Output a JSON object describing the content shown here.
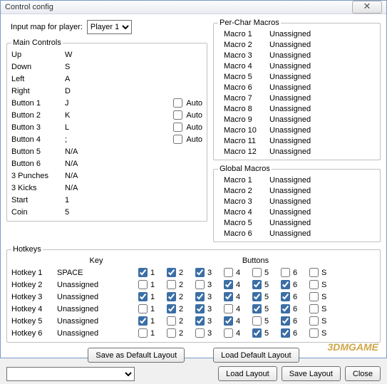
{
  "window": {
    "title": "Control config",
    "close_glyph": "✕"
  },
  "player": {
    "label": "Input map for player:",
    "selected": "Player 1"
  },
  "main_controls": {
    "legend": "Main Controls",
    "auto_label": "Auto",
    "rows": [
      {
        "label": "Up",
        "value": "W",
        "auto": null
      },
      {
        "label": "Down",
        "value": "S",
        "auto": null
      },
      {
        "label": "Left",
        "value": "A",
        "auto": null
      },
      {
        "label": "Right",
        "value": "D",
        "auto": null
      },
      {
        "label": "Button 1",
        "value": "J",
        "auto": false
      },
      {
        "label": "Button 2",
        "value": "K",
        "auto": false
      },
      {
        "label": "Button 3",
        "value": "L",
        "auto": false
      },
      {
        "label": "Button 4",
        "value": ";",
        "auto": false
      },
      {
        "label": "Button 5",
        "value": "N/A",
        "auto": null
      },
      {
        "label": "Button 6",
        "value": "N/A",
        "auto": null
      },
      {
        "label": "3 Punches",
        "value": "N/A",
        "auto": null
      },
      {
        "label": "3 Kicks",
        "value": "N/A",
        "auto": null
      },
      {
        "label": "Start",
        "value": "1",
        "auto": null
      },
      {
        "label": "Coin",
        "value": "5",
        "auto": null
      }
    ]
  },
  "per_char_macros": {
    "legend": "Per-Char Macros",
    "rows": [
      {
        "label": "Macro 1",
        "value": "Unassigned"
      },
      {
        "label": "Macro 2",
        "value": "Unassigned"
      },
      {
        "label": "Macro 3",
        "value": "Unassigned"
      },
      {
        "label": "Macro 4",
        "value": "Unassigned"
      },
      {
        "label": "Macro 5",
        "value": "Unassigned"
      },
      {
        "label": "Macro 6",
        "value": "Unassigned"
      },
      {
        "label": "Macro 7",
        "value": "Unassigned"
      },
      {
        "label": "Macro 8",
        "value": "Unassigned"
      },
      {
        "label": "Macro 9",
        "value": "Unassigned"
      },
      {
        "label": "Macro 10",
        "value": "Unassigned"
      },
      {
        "label": "Macro 11",
        "value": "Unassigned"
      },
      {
        "label": "Macro 12",
        "value": "Unassigned"
      }
    ]
  },
  "global_macros": {
    "legend": "Global Macros",
    "rows": [
      {
        "label": "Macro 1",
        "value": "Unassigned"
      },
      {
        "label": "Macro 2",
        "value": "Unassigned"
      },
      {
        "label": "Macro 3",
        "value": "Unassigned"
      },
      {
        "label": "Macro 4",
        "value": "Unassigned"
      },
      {
        "label": "Macro 5",
        "value": "Unassigned"
      },
      {
        "label": "Macro 6",
        "value": "Unassigned"
      }
    ]
  },
  "hotkeys": {
    "legend": "Hotkeys",
    "key_header": "Key",
    "buttons_header": "Buttons",
    "button_labels": [
      "1",
      "2",
      "3",
      "4",
      "5",
      "6",
      "S"
    ],
    "rows": [
      {
        "label": "Hotkey 1",
        "key": "SPACE",
        "btns": [
          true,
          true,
          true,
          false,
          false,
          false,
          false
        ]
      },
      {
        "label": "Hotkey 2",
        "key": "Unassigned",
        "btns": [
          false,
          false,
          false,
          true,
          true,
          true,
          false
        ]
      },
      {
        "label": "Hotkey 3",
        "key": "Unassigned",
        "btns": [
          true,
          true,
          true,
          true,
          true,
          true,
          false
        ]
      },
      {
        "label": "Hotkey 4",
        "key": "Unassigned",
        "btns": [
          false,
          true,
          true,
          false,
          true,
          true,
          false
        ]
      },
      {
        "label": "Hotkey 5",
        "key": "Unassigned",
        "btns": [
          true,
          false,
          true,
          true,
          false,
          true,
          false
        ]
      },
      {
        "label": "Hotkey 6",
        "key": "Unassigned",
        "btns": [
          false,
          false,
          false,
          false,
          true,
          true,
          false
        ]
      }
    ]
  },
  "buttons": {
    "save_default": "Save as  Default Layout",
    "load_default": "Load Default Layout",
    "load_layout": "Load Layout",
    "save_layout": "Save Layout",
    "close": "Close"
  },
  "watermark": "3DMGAME",
  "colors": {
    "window_border": "#7a9ac7",
    "titlebar_top": "#fcfcfd",
    "titlebar_bottom": "#e9ecf2",
    "group_border": "#c0c0c0",
    "button_border": "#707070",
    "text": "#000000"
  }
}
